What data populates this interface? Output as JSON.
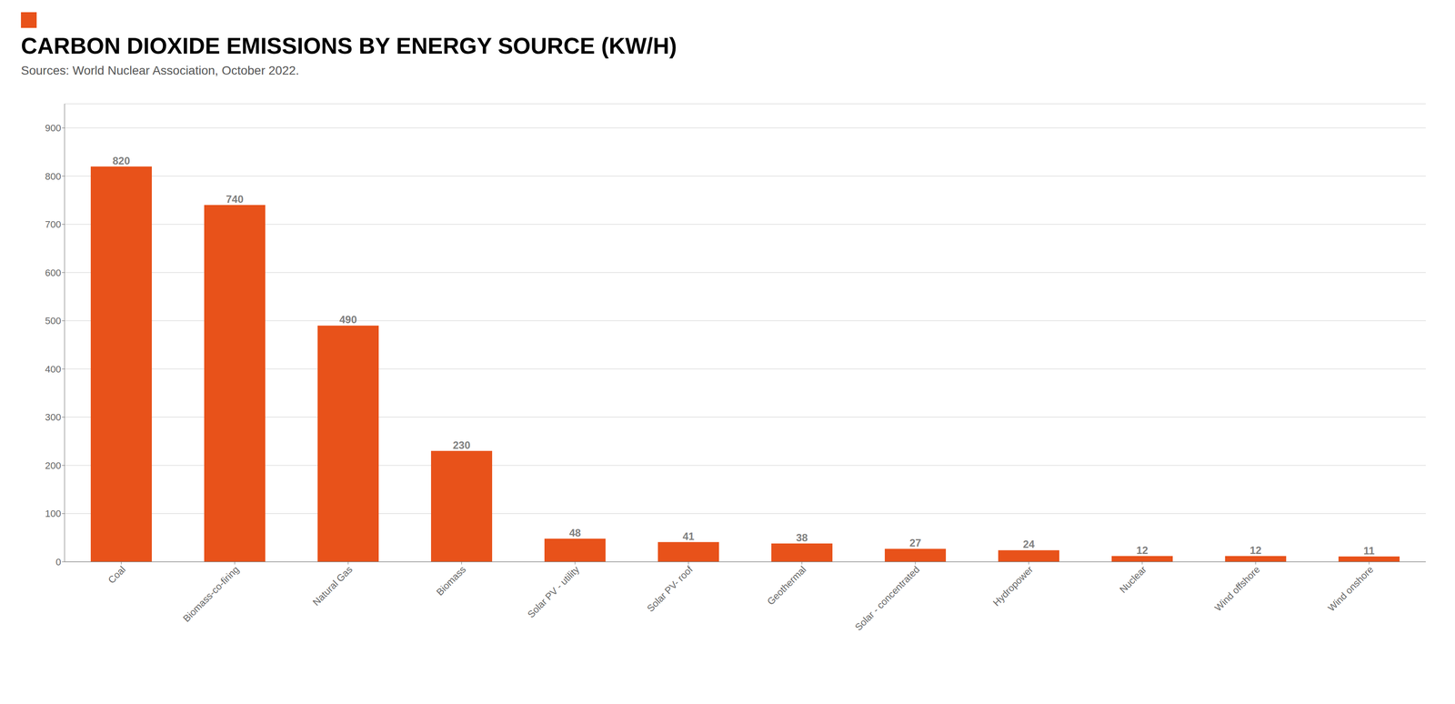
{
  "chart_data": {
    "type": "bar",
    "title": "CARBON DIOXIDE EMISSIONS BY ENERGY SOURCE (KW/H)",
    "subtitle": "Sources: World Nuclear Association, October 2022.",
    "categories": [
      "Coal",
      "Biomass-co-firing",
      "Natural Gas",
      "Biomass",
      "Solar PV - utility",
      "Solar PV- roof",
      "Geothermal",
      "Solar - concentrated",
      "Hydropower",
      "Nuclear",
      "Wind offshore",
      "Wind onshore"
    ],
    "values": [
      820,
      740,
      490,
      230,
      48,
      41,
      38,
      27,
      24,
      12,
      12,
      11
    ],
    "color": "#E8521A",
    "ylim": [
      0,
      950
    ],
    "yticks": [
      0,
      100,
      200,
      300,
      400,
      500,
      600,
      700,
      800,
      900
    ],
    "grid": true,
    "data_labels": true
  }
}
